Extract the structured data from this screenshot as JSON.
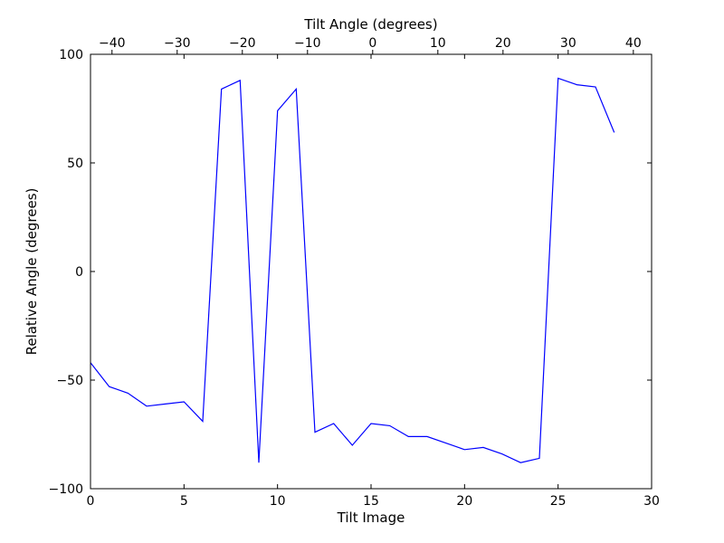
{
  "chart_data": {
    "type": "line",
    "title": "",
    "xlabel": "Tilt Image",
    "ylabel": "Relative Angle (degrees)",
    "top_xlabel": "Tilt Angle (degrees)",
    "xlim": [
      0,
      30
    ],
    "ylim": [
      -100,
      100
    ],
    "top_xlim": [
      -43.3,
      42.8
    ],
    "x_ticks": [
      0,
      5,
      10,
      15,
      20,
      25,
      30
    ],
    "x_tick_labels": [
      "0",
      "5",
      "10",
      "15",
      "20",
      "25",
      "30"
    ],
    "y_ticks": [
      -100,
      -50,
      0,
      50,
      100
    ],
    "y_tick_labels": [
      "−100",
      "−50",
      "0",
      "50",
      "100"
    ],
    "top_x_ticks": [
      -40,
      -30,
      -20,
      -10,
      0,
      10,
      20,
      30,
      40
    ],
    "top_x_tick_labels": [
      "−40",
      "−30",
      "−20",
      "−10",
      "0",
      "10",
      "20",
      "30",
      "40"
    ],
    "grid": false,
    "line_color": "#0000ff",
    "series": [
      {
        "values_x": [
          0,
          1,
          2,
          3,
          4,
          5,
          6,
          7,
          8,
          9,
          10,
          11,
          12,
          13,
          14,
          15,
          16,
          17,
          18,
          19,
          20,
          21,
          22,
          23,
          24,
          25,
          26,
          27,
          28
        ],
        "values": [
          -42,
          -53,
          -56,
          -62,
          -61,
          -60,
          -69,
          84,
          88,
          -88,
          74,
          84,
          -74,
          -70,
          -80,
          -70,
          -71,
          -76,
          -76,
          -79,
          -82,
          -81,
          -84,
          -88,
          -86,
          89,
          86,
          85,
          64
        ]
      }
    ]
  }
}
